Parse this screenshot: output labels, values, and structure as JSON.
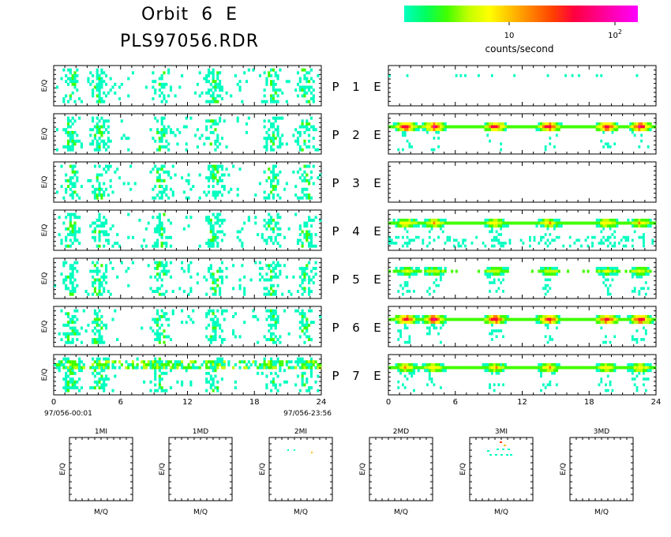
{
  "title": {
    "line1": "Orbit  6  E",
    "line2": "PLS97056.RDR"
  },
  "colorbar": {
    "label": "counts/second",
    "ticks": [
      {
        "base": "10",
        "exp": ""
      },
      {
        "base": "10",
        "exp": "2"
      }
    ],
    "colors": [
      "#00ffc0",
      "#00ff60",
      "#40ff00",
      "#c0ff00",
      "#ffff00",
      "#ffc000",
      "#ff8000",
      "#ff4000",
      "#ff0040",
      "#ff0080",
      "#ff00c0",
      "#ff00ff"
    ]
  },
  "chart_data": {
    "type": "heatmap",
    "panels": [
      "P 1 E",
      "P 2 E",
      "P 3 E",
      "P 4 E",
      "P 5 E",
      "P 6 E",
      "P 7 E"
    ],
    "ylabel": "E/Q",
    "x_ticks": [
      "0",
      "6",
      "12",
      "18",
      "24"
    ],
    "xlim": [
      0,
      24
    ],
    "x_unit": "hours",
    "time_start": "97/056-00:01",
    "time_end": "97/056-23:56",
    "left_activity_hours": [
      1.5,
      4,
      9.5,
      14.3,
      19.5,
      22.5
    ],
    "right_bands": {
      "P 1 E": "sparse",
      "P 2 E": "band_strong",
      "P 3 E": "empty",
      "P 4 E": "band_medium",
      "P 5 E": "band_weak",
      "P 6 E": "band_strong",
      "P 7 E": "band_medium"
    },
    "bottom_panels": [
      {
        "title": "1MI",
        "xlabel": "M/Q",
        "ylabel": "E/Q"
      },
      {
        "title": "1MD",
        "xlabel": "M/Q",
        "ylabel": "E/Q"
      },
      {
        "title": "2MI",
        "xlabel": "M/Q",
        "ylabel": "E/Q"
      },
      {
        "title": "2MD",
        "xlabel": "M/Q",
        "ylabel": "E/Q"
      },
      {
        "title": "3MI",
        "xlabel": "M/Q",
        "ylabel": "E/Q"
      },
      {
        "title": "3MD",
        "xlabel": "M/Q",
        "ylabel": "E/Q"
      }
    ]
  }
}
